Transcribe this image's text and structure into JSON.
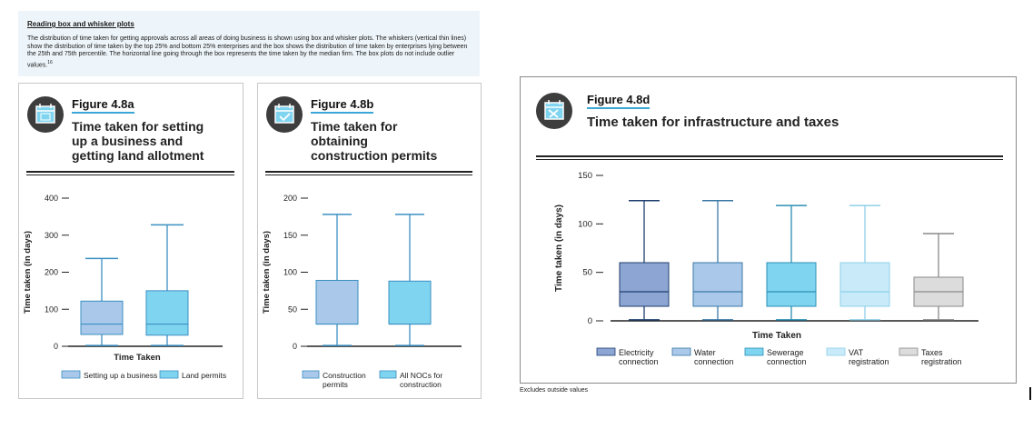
{
  "note": {
    "title": "Reading box and whisker plots",
    "body": "The distribution of time taken for getting approvals across all areas of doing business is shown using box and whisker plots. The whiskers (vertical thin lines) show the distribution of time taken by the top 25% and bottom 25% enterprises and the box shows the distribution of time taken by enterprises lying between the 25th and 75th percentile. The horizontal line going through the box represents the time taken by the median firm. The box plots do not include outlier values.",
    "footnote_ref": "16"
  },
  "figures": [
    {
      "label": "Figure 4.8a",
      "title_lines": [
        "Time taken for setting",
        "up a business and",
        "getting land allotment"
      ],
      "icon": "calendar-icon"
    },
    {
      "label": "Figure 4.8b",
      "title_lines": [
        "Time taken for",
        "obtaining",
        "construction permits"
      ],
      "icon": "calendar-check-icon"
    },
    {
      "label": "Figure 4.8d",
      "title_lines": [
        "Time taken for infrastructure and taxes"
      ],
      "icon": "tools-calendar-icon"
    }
  ],
  "footnote": "Excludes outside values",
  "chart_data": [
    {
      "type": "boxplot",
      "ylabel": "Time taken (in days)",
      "xlabel": "Time Taken",
      "ylim": [
        0,
        400
      ],
      "yticks": [
        0,
        100,
        200,
        300,
        400
      ],
      "series": [
        {
          "name": "Setting up a business",
          "min": 2,
          "q1": 32,
          "median": 60,
          "q3": 122,
          "max": 237,
          "color": "#a9c8ea"
        },
        {
          "name": "Land permits",
          "min": 2,
          "q1": 30,
          "median": 60,
          "q3": 150,
          "max": 328,
          "color": "#7fd4f0"
        }
      ]
    },
    {
      "type": "boxplot",
      "ylabel": "Time taken (in days)",
      "xlabel": "",
      "ylim": [
        0,
        200
      ],
      "yticks": [
        0,
        50,
        100,
        150,
        200
      ],
      "series": [
        {
          "name_lines": [
            "Construction",
            "permits"
          ],
          "min": 1,
          "q1": 30,
          "median": 30,
          "q3": 89,
          "max": 178,
          "color": "#a9c8ea"
        },
        {
          "name_lines": [
            "All NOCs for",
            "construction"
          ],
          "min": 1,
          "q1": 30,
          "median": 30,
          "q3": 88,
          "max": 178,
          "color": "#7fd4f0"
        }
      ]
    },
    {
      "type": "boxplot",
      "ylabel": "Time taken (in days)",
      "xlabel": "Time Taken",
      "ylim": [
        0,
        150
      ],
      "yticks": [
        0,
        50,
        100,
        150
      ],
      "series": [
        {
          "name_lines": [
            "Electricity",
            "connection"
          ],
          "min": 1,
          "q1": 15,
          "median": 30,
          "q3": 60,
          "max": 124,
          "color": "#8da5d3",
          "stroke": "#1e3f6e"
        },
        {
          "name_lines": [
            "Water",
            "connection"
          ],
          "min": 1,
          "q1": 15,
          "median": 30,
          "q3": 60,
          "max": 124,
          "color": "#a9c8ea",
          "stroke": "#3b78a6"
        },
        {
          "name_lines": [
            "Sewerage",
            "connection"
          ],
          "min": 1,
          "q1": 15,
          "median": 30,
          "q3": 60,
          "max": 119,
          "color": "#7fd4f0",
          "stroke": "#2a8fb4"
        },
        {
          "name_lines": [
            "VAT",
            "registration"
          ],
          "min": 1,
          "q1": 15,
          "median": 30,
          "q3": 60,
          "max": 119,
          "color": "#c9eaf8",
          "stroke": "#8fd0ea"
        },
        {
          "name_lines": [
            "Taxes",
            "registration"
          ],
          "min": 1,
          "q1": 15,
          "median": 30,
          "q3": 45,
          "max": 90,
          "color": "#dcdcdc",
          "stroke": "#8a8a8a"
        }
      ]
    }
  ]
}
